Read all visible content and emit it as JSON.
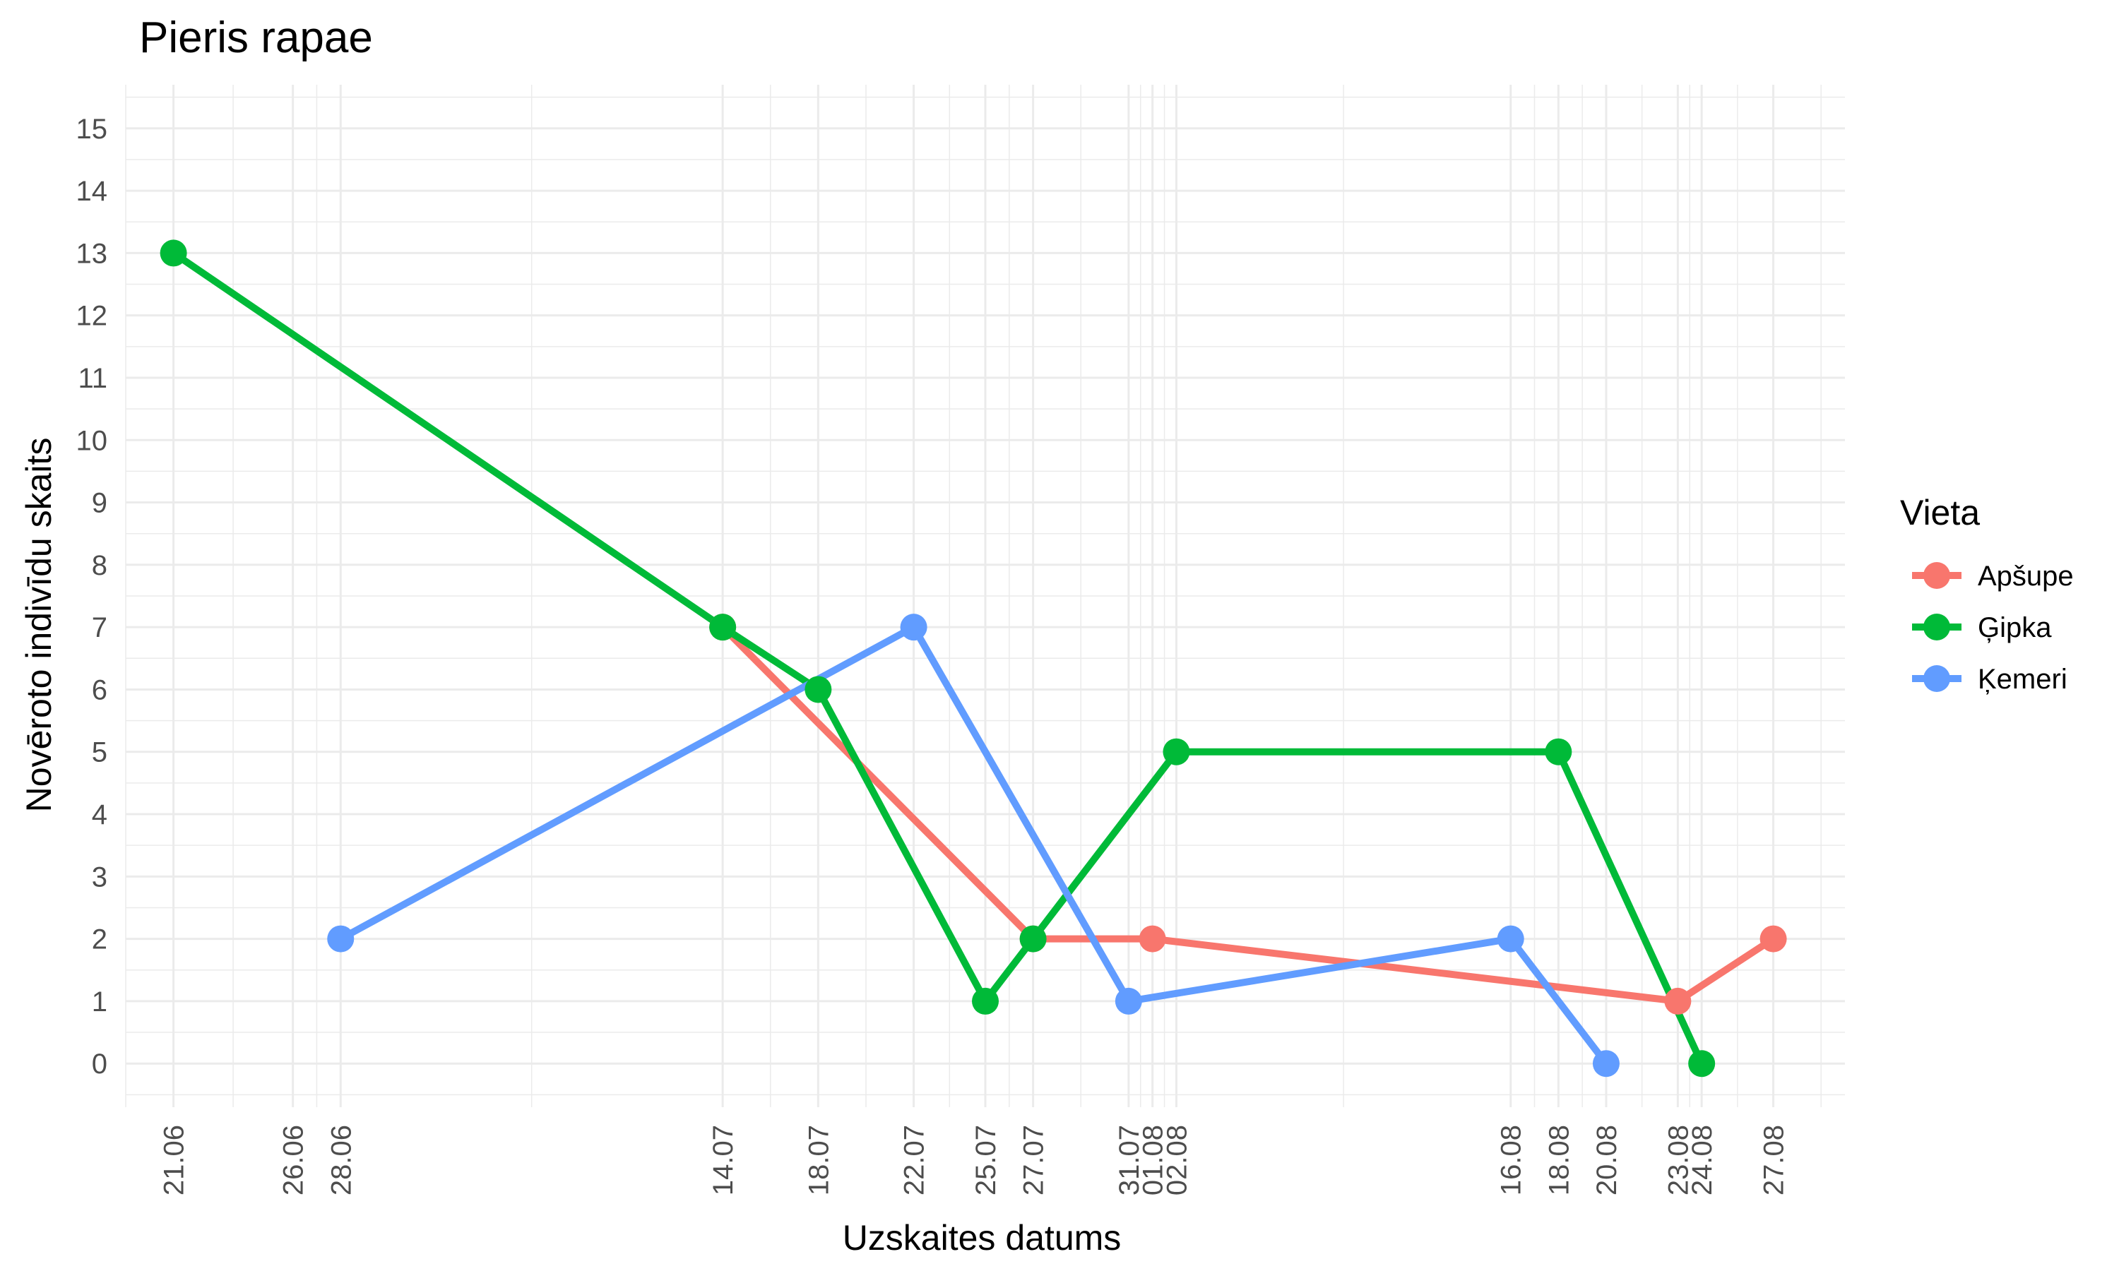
{
  "chart_data": {
    "type": "line",
    "title": "Pieris rapae",
    "xlabel": "Uzskaites datums",
    "ylabel": "Novēroto indivīdu skaits",
    "x_format": "DD.MM",
    "x_ticks": [
      "21.06",
      "26.06",
      "28.06",
      "14.07",
      "18.07",
      "22.07",
      "25.07",
      "27.07",
      "31.07",
      "01.08",
      "02.08",
      "16.08",
      "18.08",
      "20.08",
      "23.08",
      "24.08",
      "27.08"
    ],
    "xlim": [
      "2017-06-19",
      "2017-08-30"
    ],
    "ylim": [
      -0.7,
      15.7
    ],
    "y_ticks": [
      0,
      1,
      2,
      3,
      4,
      5,
      6,
      7,
      8,
      9,
      10,
      11,
      12,
      13,
      14,
      15
    ],
    "grid": true,
    "legend": {
      "title": "Vieta",
      "placement": "right"
    },
    "series": [
      {
        "name": "Apšupe",
        "color": "#F8766D",
        "points": [
          {
            "x": "2017-07-14",
            "y": 7
          },
          {
            "x": "2017-07-27",
            "y": 2
          },
          {
            "x": "2017-08-01",
            "y": 2
          },
          {
            "x": "2017-08-23",
            "y": 1
          },
          {
            "x": "2017-08-27",
            "y": 2
          }
        ]
      },
      {
        "name": "Ģipka",
        "color": "#00BA38",
        "points": [
          {
            "x": "2017-06-21",
            "y": 13
          },
          {
            "x": "2017-07-14",
            "y": 7
          },
          {
            "x": "2017-07-18",
            "y": 6
          },
          {
            "x": "2017-07-25",
            "y": 1
          },
          {
            "x": "2017-07-27",
            "y": 2
          },
          {
            "x": "2017-08-02",
            "y": 5
          },
          {
            "x": "2017-08-18",
            "y": 5
          },
          {
            "x": "2017-08-24",
            "y": 0
          }
        ]
      },
      {
        "name": "Ķemeri",
        "color": "#619CFF",
        "points": [
          {
            "x": "2017-06-28",
            "y": 2
          },
          {
            "x": "2017-07-22",
            "y": 7
          },
          {
            "x": "2017-07-31",
            "y": 1
          },
          {
            "x": "2017-08-16",
            "y": 2
          },
          {
            "x": "2017-08-20",
            "y": 0
          }
        ]
      }
    ]
  }
}
